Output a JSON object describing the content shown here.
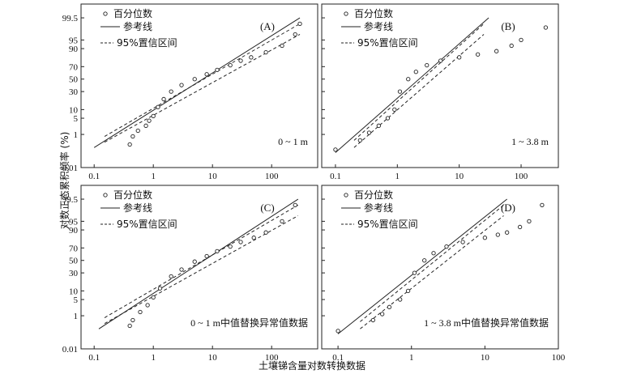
{
  "figure": {
    "x_axis_label": "土壤锑含量对数转换数据",
    "y_axis_label": "对数正态累积频率 (%)",
    "x_ticks": [
      "0.1",
      "1",
      "10",
      "100"
    ],
    "y_ticks": [
      "0.01",
      "1",
      "5",
      "10",
      "30",
      "50",
      "70",
      "90",
      "95",
      "99.5"
    ],
    "legend": {
      "points": "百分位数",
      "reference": "参考线",
      "ci": "95%置信区间"
    }
  },
  "chart_data": [
    {
      "type": "scatter",
      "panel_id": "(A)",
      "annotation": "0 ~ 1 m",
      "x_scale": "log",
      "y_scale": "normal-probability",
      "xlim": [
        0.06,
        600
      ],
      "ylim_percent": [
        0.01,
        99.9
      ],
      "series": [
        {
          "name": "百分位数",
          "x": [
            0.4,
            0.45,
            0.55,
            0.75,
            0.85,
            1.0,
            1.2,
            1.5,
            2,
            3,
            5,
            8,
            12,
            20,
            30,
            45,
            80,
            150,
            250,
            300
          ],
          "y": [
            0.3,
            0.8,
            1.5,
            2.5,
            4,
            6,
            12,
            20,
            30,
            40,
            50,
            58,
            65,
            72,
            78,
            82,
            87,
            92,
            97,
            99
          ]
        },
        {
          "name": "参考线",
          "x": [
            0.1,
            300
          ],
          "y": [
            0.2,
            99.5
          ]
        },
        {
          "name": "95%置信区间",
          "x": [
            0.15,
            300
          ],
          "y": [
            0.8,
            99
          ]
        },
        {
          "name": "95%置信区间",
          "x": [
            0.15,
            300
          ],
          "y": [
            0.4,
            97
          ]
        }
      ]
    },
    {
      "type": "scatter",
      "panel_id": "(B)",
      "annotation": "1 ~ 3.8 m",
      "x_scale": "log",
      "y_scale": "normal-probability",
      "xlim": [
        0.06,
        400
      ],
      "ylim_percent": [
        0.01,
        99.9
      ],
      "series": [
        {
          "name": "百分位数",
          "x": [
            0.1,
            0.25,
            0.35,
            0.5,
            0.7,
            0.9,
            1.1,
            1.5,
            2,
            3,
            5,
            10,
            20,
            40,
            70,
            100,
            250
          ],
          "y": [
            0.15,
            0.5,
            1.2,
            2.5,
            5,
            10,
            30,
            50,
            62,
            72,
            78,
            82,
            85,
            88,
            92,
            95,
            98.5
          ]
        },
        {
          "name": "参考线",
          "x": [
            0.1,
            30
          ],
          "y": [
            0.1,
            99.5
          ]
        },
        {
          "name": "95%置信区间",
          "x": [
            0.2,
            25
          ],
          "y": [
            0.5,
            99
          ]
        },
        {
          "name": "95%置信区间",
          "x": [
            0.2,
            25
          ],
          "y": [
            0.2,
            97
          ]
        }
      ]
    },
    {
      "type": "scatter",
      "panel_id": "(C)",
      "annotation": "0 ~ 1 m中值替换异常值数据",
      "x_scale": "log",
      "y_scale": "normal-probability",
      "xlim": [
        0.06,
        600
      ],
      "ylim_percent": [
        0.01,
        99.9
      ],
      "series": [
        {
          "name": "百分位数",
          "x": [
            0.4,
            0.45,
            0.6,
            0.8,
            1.0,
            1.3,
            2,
            3,
            5,
            8,
            12,
            20,
            30,
            50,
            80,
            150,
            250
          ],
          "y": [
            0.3,
            0.6,
            1.5,
            3,
            6,
            12,
            25,
            35,
            48,
            57,
            65,
            72,
            78,
            83,
            88,
            95,
            99
          ]
        },
        {
          "name": "参考线",
          "x": [
            0.12,
            280
          ],
          "y": [
            0.2,
            99.5
          ]
        },
        {
          "name": "95%置信区间",
          "x": [
            0.15,
            280
          ],
          "y": [
            0.8,
            99
          ]
        },
        {
          "name": "95%置信区间",
          "x": [
            0.15,
            280
          ],
          "y": [
            0.4,
            97
          ]
        }
      ]
    },
    {
      "type": "scatter",
      "panel_id": "(D)",
      "annotation": "1 ~ 3.8 m中值替换异常值数据",
      "x_scale": "log",
      "y_scale": "normal-probability",
      "xlim": [
        0.06,
        100
      ],
      "ylim_percent": [
        0.01,
        99.9
      ],
      "series": [
        {
          "name": "百分位数",
          "x": [
            0.1,
            0.3,
            0.4,
            0.5,
            0.7,
            0.9,
            1.1,
            1.5,
            2,
            3,
            5,
            10,
            15,
            20,
            30,
            40,
            60
          ],
          "y": [
            0.15,
            0.6,
            1.2,
            2.5,
            5,
            10,
            30,
            50,
            62,
            72,
            78,
            83,
            86,
            88,
            92,
            95,
            99
          ]
        },
        {
          "name": "参考线",
          "x": [
            0.1,
            20
          ],
          "y": [
            0.1,
            99.5
          ]
        },
        {
          "name": "95%置信区间",
          "x": [
            0.2,
            18
          ],
          "y": [
            0.5,
            99
          ]
        },
        {
          "name": "95%置信区间",
          "x": [
            0.2,
            18
          ],
          "y": [
            0.2,
            97
          ]
        }
      ]
    }
  ]
}
